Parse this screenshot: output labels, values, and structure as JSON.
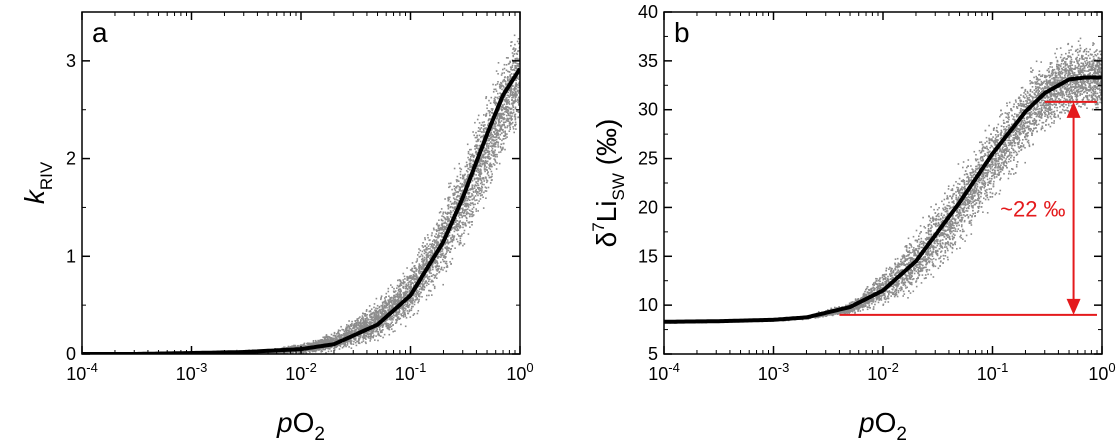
{
  "chart_data": [
    {
      "panel": "a",
      "type": "scatter",
      "xscale": "log",
      "xlim": [
        0.0001,
        1
      ],
      "ylim": [
        0,
        3.5
      ],
      "xticks": [
        {
          "base": "10",
          "exp": "-4"
        },
        {
          "base": "10",
          "exp": "-3"
        },
        {
          "base": "10",
          "exp": "-2"
        },
        {
          "base": "10",
          "exp": "-1"
        },
        {
          "base": "10",
          "exp": "0"
        }
      ],
      "yticks": [
        "0",
        "1",
        "2",
        "3"
      ],
      "xlabel": {
        "italic": "p",
        "main": "O",
        "sub": "2"
      },
      "ylabel": {
        "italic": "k",
        "sub": "RIV"
      },
      "scatter_color": "#8c8c8c",
      "curve_color": "#000000",
      "series": [
        {
          "kind": "fit-line",
          "x": [
            0.0001,
            0.0003,
            0.001,
            0.003,
            0.01,
            0.02,
            0.05,
            0.1,
            0.2,
            0.3,
            0.5,
            0.7,
            1.0
          ],
          "y": [
            0.0,
            0.0,
            0.01,
            0.02,
            0.05,
            0.1,
            0.3,
            0.6,
            1.15,
            1.6,
            2.25,
            2.65,
            2.92
          ]
        },
        {
          "kind": "scatter-band",
          "x": [
            0.0001,
            0.001,
            0.005,
            0.01,
            0.02,
            0.05,
            0.1,
            0.2,
            0.3,
            0.5,
            0.7,
            1.0
          ],
          "y_low": [
            0.0,
            0.0,
            0.0,
            0.0,
            0.02,
            0.1,
            0.3,
            0.7,
            1.0,
            1.5,
            1.9,
            2.2
          ],
          "y_high": [
            0.0,
            0.02,
            0.06,
            0.12,
            0.25,
            0.6,
            1.0,
            1.7,
            2.2,
            2.8,
            3.2,
            3.5
          ]
        }
      ]
    },
    {
      "panel": "b",
      "type": "scatter",
      "xscale": "log",
      "xlim": [
        0.0001,
        1
      ],
      "ylim": [
        5,
        40
      ],
      "xticks": [
        {
          "base": "10",
          "exp": "-4"
        },
        {
          "base": "10",
          "exp": "-3"
        },
        {
          "base": "10",
          "exp": "-2"
        },
        {
          "base": "10",
          "exp": "-1"
        },
        {
          "base": "10",
          "exp": "0"
        }
      ],
      "yticks": [
        "5",
        "10",
        "15",
        "20",
        "25",
        "30",
        "35",
        "40"
      ],
      "xlabel": {
        "italic": "p",
        "main": "O",
        "sub": "2"
      },
      "ylabel": {
        "main": "δ",
        "sup": "7",
        "main2": "Li",
        "sub": "SW",
        "unit": " (‰)"
      },
      "scatter_color": "#8c8c8c",
      "curve_color": "#000000",
      "annotation_color": "#e41a1c",
      "annotation": {
        "text": "~22 ‰",
        "y_low": 9.0,
        "y_high": 30.8,
        "x_arrow": 0.55,
        "x_low_line_start": 0.004,
        "x_line_end": 0.9,
        "x_high_line_start": 0.3
      },
      "series": [
        {
          "kind": "fit-line",
          "x": [
            0.0001,
            0.0003,
            0.001,
            0.002,
            0.005,
            0.01,
            0.02,
            0.05,
            0.1,
            0.2,
            0.3,
            0.5,
            0.7,
            1.0
          ],
          "y": [
            8.3,
            8.35,
            8.5,
            8.75,
            9.8,
            11.5,
            14.5,
            20.5,
            25.5,
            29.8,
            31.7,
            33.1,
            33.3,
            33.3
          ]
        },
        {
          "kind": "scatter-band",
          "x": [
            0.0001,
            0.001,
            0.002,
            0.005,
            0.01,
            0.02,
            0.05,
            0.1,
            0.2,
            0.3,
            0.5,
            0.7,
            1.0
          ],
          "y_low": [
            8.2,
            8.4,
            8.6,
            9.0,
            9.5,
            11.0,
            15.0,
            20.0,
            24.5,
            27.0,
            28.5,
            29.0,
            29.0
          ],
          "y_high": [
            8.4,
            8.7,
            9.0,
            10.5,
            14.0,
            18.5,
            25.0,
            30.0,
            34.5,
            36.5,
            37.8,
            38.0,
            37.5
          ]
        }
      ]
    }
  ]
}
